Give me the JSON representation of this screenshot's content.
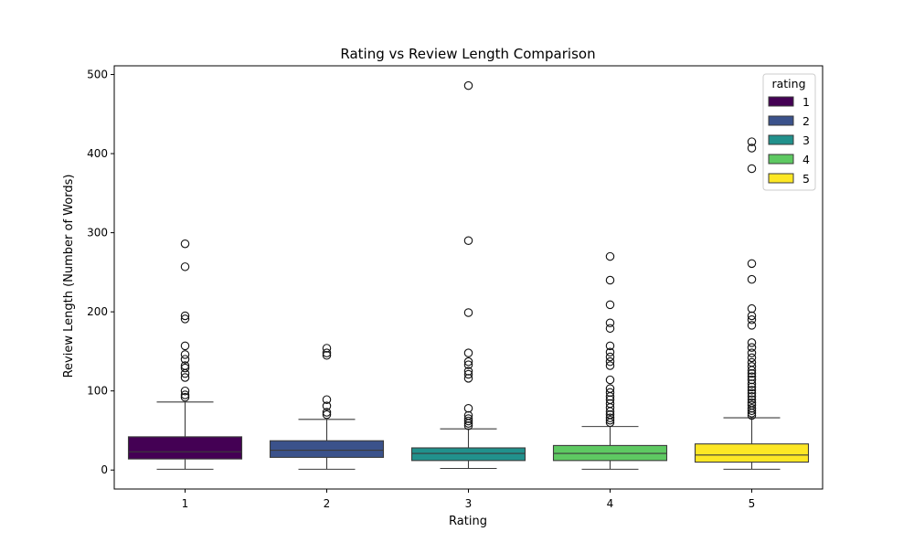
{
  "chart_data": {
    "type": "box",
    "title": "Rating vs Review Length Comparison",
    "xlabel": "Rating",
    "ylabel": "Review Length (Number of Words)",
    "categories": [
      "1",
      "2",
      "3",
      "4",
      "5"
    ],
    "ylim": [
      -24,
      511
    ],
    "yticks": [
      0,
      100,
      200,
      300,
      400,
      500
    ],
    "grid": false,
    "legend": {
      "title": "rating",
      "position": "top-right",
      "entries": [
        "1",
        "2",
        "3",
        "4",
        "5"
      ]
    },
    "colors": [
      "#440154",
      "#3b528b",
      "#21918c",
      "#5ec962",
      "#fde725"
    ],
    "boxes": [
      {
        "category": "1",
        "whisker_low": 1,
        "q1": 14,
        "median": 23,
        "q3": 42,
        "whisker_high": 86,
        "outliers": [
          92,
          95,
          100,
          117,
          122,
          129,
          132,
          140,
          146,
          157,
          191,
          195,
          257,
          286
        ]
      },
      {
        "category": "2",
        "whisker_low": 1,
        "q1": 16,
        "median": 25,
        "q3": 37,
        "whisker_high": 64,
        "outliers": [
          70,
          73,
          81,
          89,
          145,
          148,
          154
        ]
      },
      {
        "category": "3",
        "whisker_low": 2,
        "q1": 12,
        "median": 21,
        "q3": 28,
        "whisker_high": 52,
        "outliers": [
          56,
          59,
          62,
          65,
          69,
          78,
          116,
          121,
          125,
          133,
          137,
          148,
          199,
          290,
          486
        ]
      },
      {
        "category": "4",
        "whisker_low": 1,
        "q1": 12,
        "median": 21,
        "q3": 31,
        "whisker_high": 55,
        "outliers": [
          60,
          63,
          66,
          70,
          74,
          79,
          84,
          89,
          93,
          98,
          103,
          114,
          132,
          137,
          143,
          149,
          157,
          179,
          186,
          209,
          240,
          270
        ]
      },
      {
        "category": "5",
        "whisker_low": 1,
        "q1": 10,
        "median": 19,
        "q3": 33,
        "whisker_high": 66,
        "outliers": [
          69,
          72,
          75,
          78,
          82,
          85,
          89,
          93,
          97,
          101,
          105,
          109,
          114,
          118,
          122,
          126,
          131,
          136,
          142,
          148,
          155,
          161,
          183,
          190,
          195,
          204,
          241,
          261,
          381,
          407,
          415
        ]
      }
    ]
  }
}
